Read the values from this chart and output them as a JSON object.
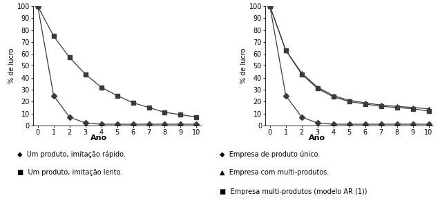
{
  "x": [
    0,
    1,
    2,
    3,
    4,
    5,
    6,
    7,
    8,
    9,
    10
  ],
  "left_rapid": [
    100,
    25,
    7,
    2,
    1,
    1,
    1,
    1,
    1,
    1,
    1
  ],
  "left_slow": [
    100,
    75,
    57,
    43,
    32,
    25,
    19,
    15,
    11,
    9,
    7
  ],
  "right_single": [
    100,
    25,
    7,
    2,
    1,
    1,
    1,
    1,
    1,
    1,
    1
  ],
  "right_multi": [
    100,
    63,
    44,
    32,
    25,
    21,
    19,
    17,
    16,
    15,
    14
  ],
  "right_multi_ar": [
    100,
    63,
    43,
    31,
    24,
    20,
    18,
    16,
    15,
    14,
    12
  ],
  "ylim": [
    0,
    100
  ],
  "xlim_min": -0.3,
  "xlim_max": 10.3,
  "yticks": [
    0,
    10,
    20,
    30,
    40,
    50,
    60,
    70,
    80,
    90,
    100
  ],
  "xticks": [
    0,
    1,
    2,
    3,
    4,
    5,
    6,
    7,
    8,
    9,
    10
  ],
  "ylabel": "% de lucro",
  "xlabel": "Ano",
  "legend_left": [
    {
      "label": "Um produto, imitação rápido.",
      "marker": "D",
      "sym": "◆"
    },
    {
      "label": "Um produto, imitação lento.",
      "marker": "s",
      "sym": "■"
    }
  ],
  "legend_right": [
    {
      "label": "Empresa de produto único.",
      "marker": "D",
      "sym": "◆"
    },
    {
      "label": "Empresa com multi-produtos.",
      "marker": "^",
      "sym": "▲"
    },
    {
      "label": "Empresa multi-produtos (modelo AR (1))",
      "marker": "s",
      "sym": "■"
    }
  ],
  "line_color": "#3a3a3a",
  "bg_color": "#ffffff",
  "fontsize_tick": 7,
  "fontsize_ylabel": 7,
  "fontsize_legend": 7,
  "fontsize_xlabel": 8,
  "markersize": 4,
  "linewidth": 0.9
}
